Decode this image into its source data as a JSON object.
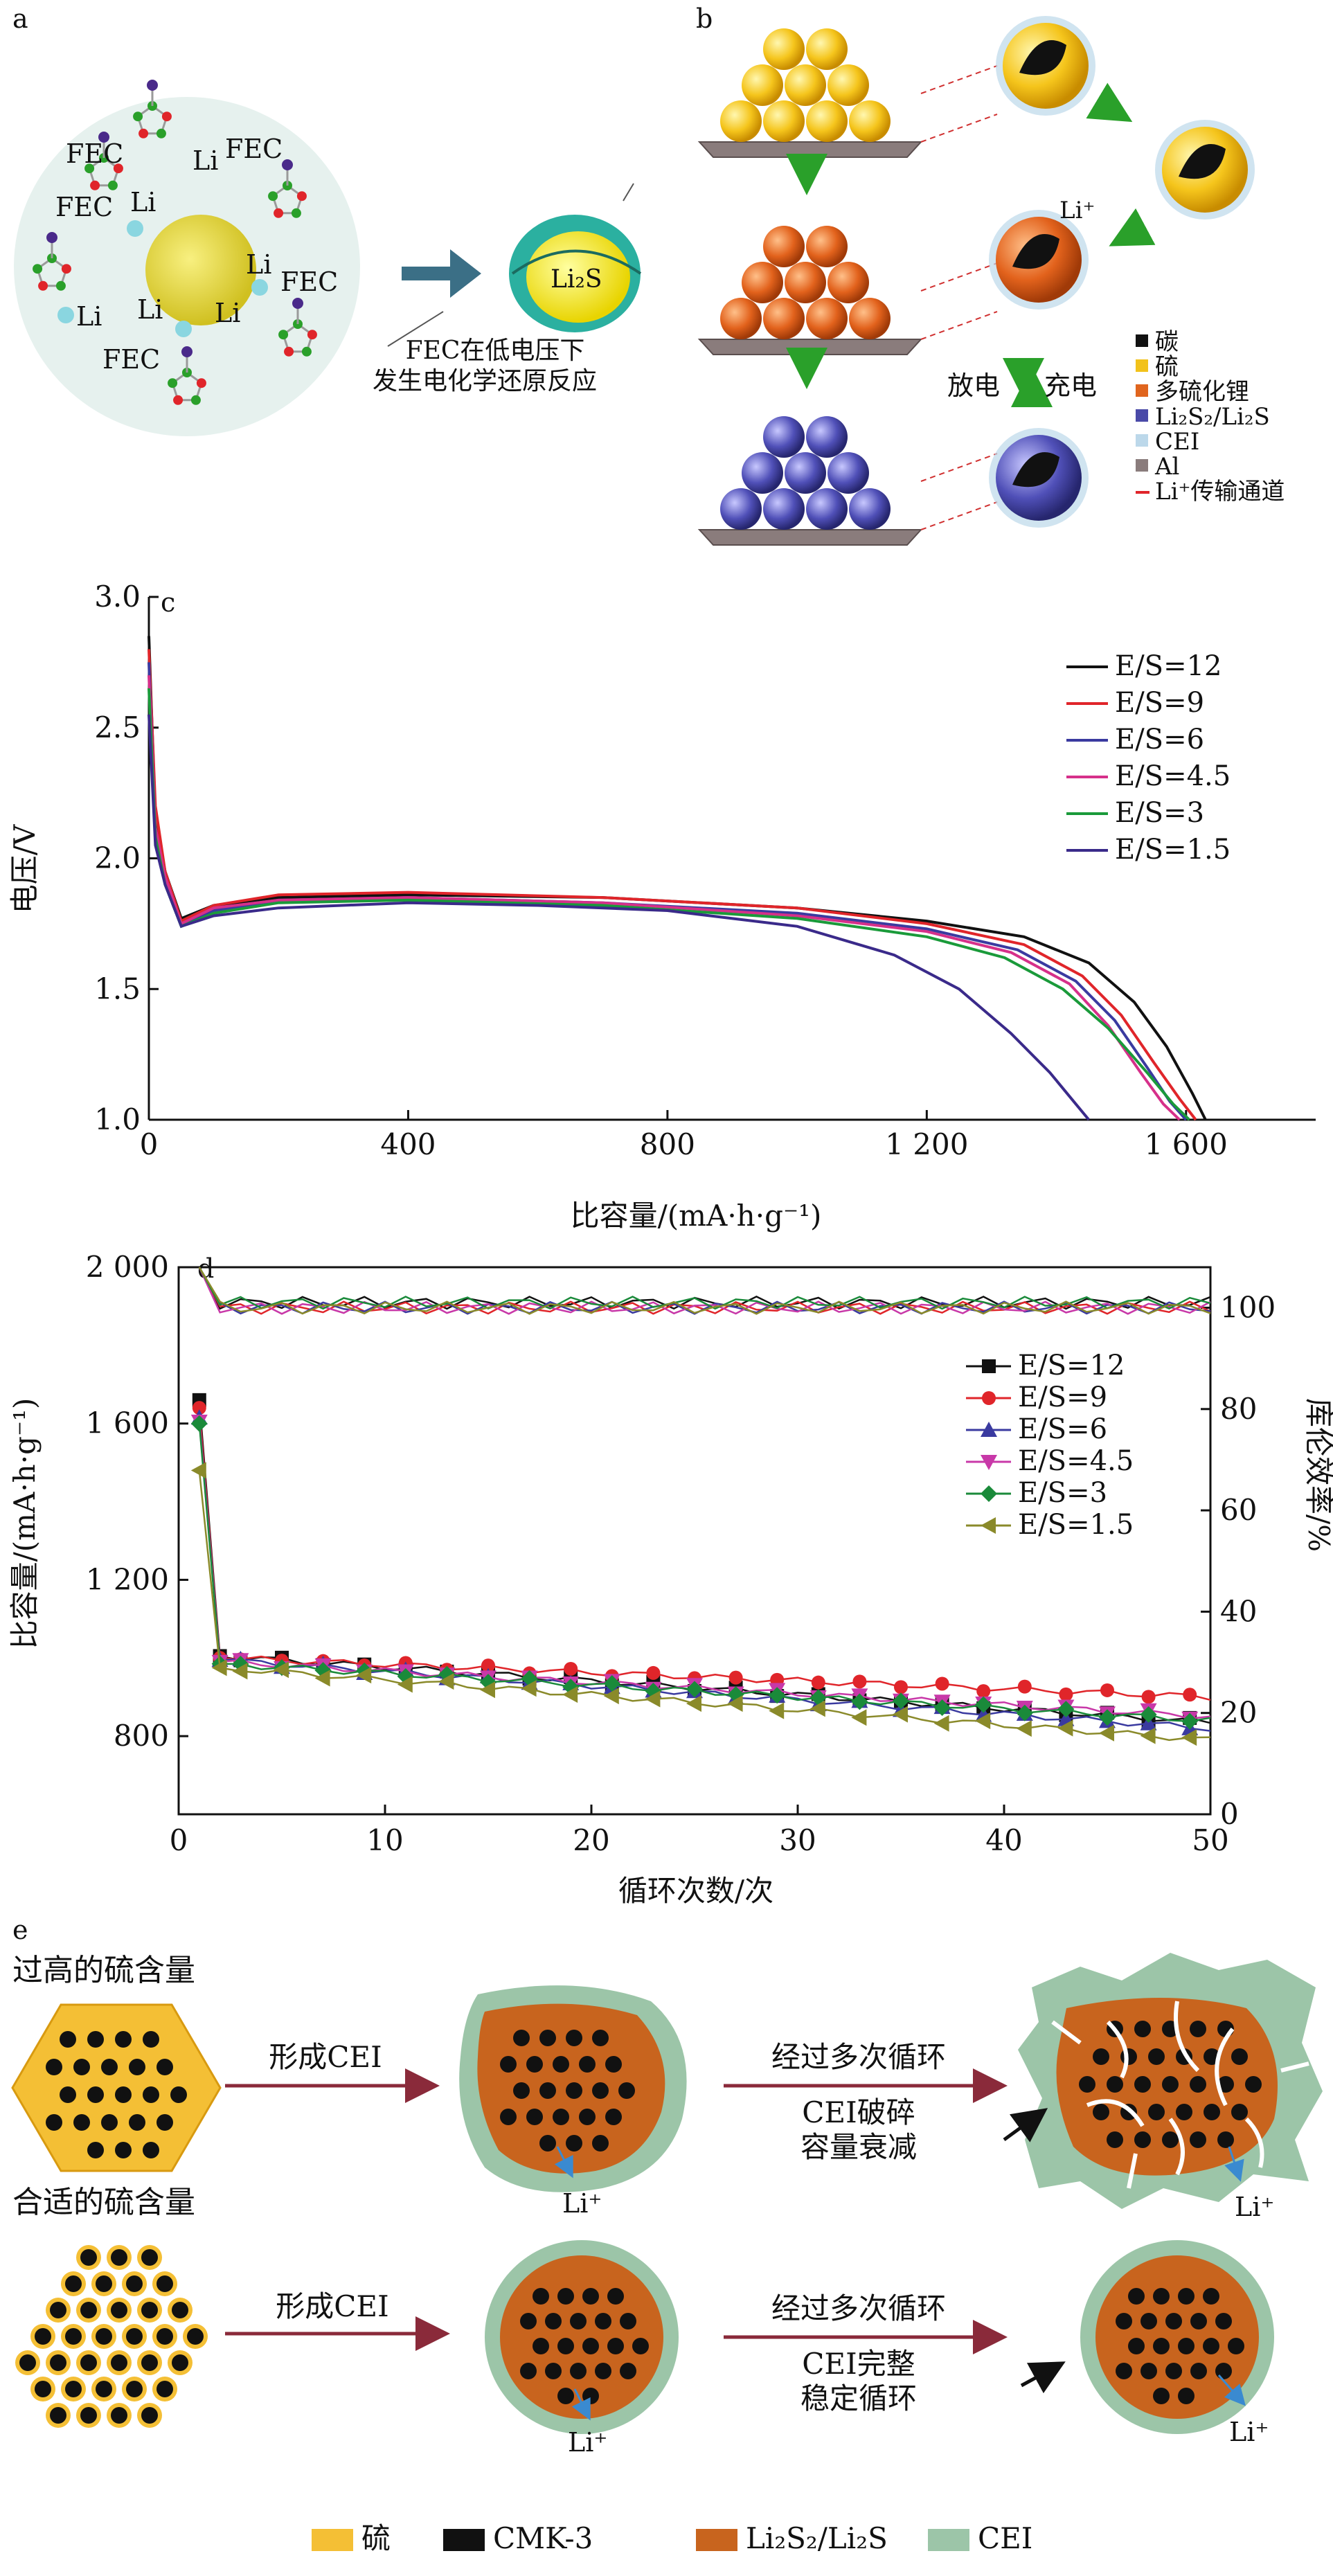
{
  "panel_a": {
    "label": "a",
    "fec": "FEC",
    "li": "Li",
    "product": "Li₂S",
    "caption_line1": "FEC在低电压下",
    "caption_line2": "发生电化学还原反应"
  },
  "panel_b": {
    "label": "b",
    "li_plus": "Li⁺",
    "discharge": "放电",
    "charge": "充电",
    "legend": [
      {
        "label": "碳",
        "color": "#111111"
      },
      {
        "label": "硫",
        "color": "#f2c21b"
      },
      {
        "label": "多硫化锂",
        "color": "#e0651e"
      },
      {
        "label": "Li₂S₂/Li₂S",
        "color": "#4a4aa8"
      },
      {
        "label": "CEI",
        "color": "#bcd8ea"
      },
      {
        "label": "Al",
        "color": "#8a7c7c"
      },
      {
        "label": "Li⁺传输通道",
        "color": "#e0252a"
      }
    ]
  },
  "chart_data": [
    {
      "type": "line",
      "label": "c",
      "xlabel": "比容量/(mA·h·g⁻¹)",
      "ylabel": "电压/V",
      "xlim": [
        0,
        1800
      ],
      "ylim": [
        1.0,
        3.0
      ],
      "xticks": [
        0,
        400,
        800,
        1200,
        1600
      ],
      "xtick_labels": [
        "0",
        "400",
        "800",
        "1 200",
        "1 600"
      ],
      "yticks": [
        1.0,
        1.5,
        2.0,
        2.5,
        3.0
      ],
      "ytick_labels": [
        "1.0",
        "1.5",
        "2.0",
        "2.5",
        "3.0"
      ],
      "legend_position": "top-right",
      "series": [
        {
          "name": "E/S=12",
          "color": "#111111",
          "x": [
            0,
            10,
            25,
            50,
            100,
            200,
            400,
            700,
            1000,
            1200,
            1350,
            1450,
            1520,
            1570,
            1610,
            1630
          ],
          "y": [
            2.85,
            2.15,
            1.95,
            1.77,
            1.82,
            1.85,
            1.86,
            1.85,
            1.81,
            1.76,
            1.7,
            1.6,
            1.45,
            1.28,
            1.1,
            1.0
          ]
        },
        {
          "name": "E/S=9",
          "color": "#e0252a",
          "x": [
            0,
            10,
            25,
            50,
            100,
            200,
            400,
            700,
            1000,
            1200,
            1350,
            1440,
            1500,
            1550,
            1590,
            1615
          ],
          "y": [
            2.8,
            2.2,
            1.95,
            1.76,
            1.82,
            1.86,
            1.87,
            1.85,
            1.81,
            1.75,
            1.67,
            1.55,
            1.4,
            1.22,
            1.08,
            1.0
          ]
        },
        {
          "name": "E/S=6",
          "color": "#3a3aa0",
          "x": [
            0,
            10,
            25,
            50,
            100,
            200,
            400,
            700,
            1000,
            1200,
            1340,
            1430,
            1490,
            1540,
            1575,
            1600
          ],
          "y": [
            2.75,
            2.1,
            1.92,
            1.75,
            1.8,
            1.84,
            1.85,
            1.83,
            1.79,
            1.73,
            1.65,
            1.53,
            1.38,
            1.2,
            1.07,
            1.0
          ]
        },
        {
          "name": "E/S=4.5",
          "color": "#d6308a",
          "x": [
            0,
            10,
            25,
            50,
            100,
            200,
            400,
            700,
            1000,
            1200,
            1330,
            1420,
            1480,
            1530,
            1565,
            1590
          ],
          "y": [
            2.7,
            2.12,
            1.93,
            1.75,
            1.81,
            1.84,
            1.85,
            1.83,
            1.78,
            1.72,
            1.64,
            1.52,
            1.36,
            1.18,
            1.06,
            1.0
          ]
        },
        {
          "name": "E/S=3",
          "color": "#1a9a3a",
          "x": [
            0,
            10,
            25,
            50,
            100,
            200,
            400,
            700,
            1000,
            1200,
            1320,
            1410,
            1480,
            1540,
            1580,
            1605
          ],
          "y": [
            2.65,
            2.08,
            1.9,
            1.74,
            1.79,
            1.83,
            1.84,
            1.82,
            1.77,
            1.7,
            1.62,
            1.5,
            1.35,
            1.18,
            1.06,
            1.0
          ]
        },
        {
          "name": "E/S=1.5",
          "color": "#3a2a8a",
          "x": [
            0,
            10,
            25,
            50,
            100,
            200,
            400,
            600,
            800,
            1000,
            1150,
            1250,
            1330,
            1390,
            1430,
            1450
          ],
          "y": [
            2.55,
            2.05,
            1.9,
            1.74,
            1.78,
            1.81,
            1.83,
            1.82,
            1.8,
            1.74,
            1.63,
            1.5,
            1.33,
            1.18,
            1.06,
            1.0
          ]
        }
      ]
    },
    {
      "type": "scatter",
      "label": "d",
      "xlabel": "循环次数/次",
      "ylabel": "比容量/(mA·h·g⁻¹)",
      "y2label": "库伦效率/%",
      "xlim": [
        0,
        50
      ],
      "ylim": [
        600,
        2000
      ],
      "y2lim": [
        0,
        108
      ],
      "xticks": [
        0,
        10,
        20,
        30,
        40,
        50
      ],
      "yticks": [
        800,
        1200,
        1600,
        2000
      ],
      "ytick_labels": [
        "800",
        "1 200",
        "1 600",
        "2 000"
      ],
      "y2ticks": [
        0,
        20,
        40,
        60,
        80,
        100
      ],
      "legend_position": "right",
      "series": [
        {
          "name": "E/S=12",
          "color": "#111111",
          "marker": "square",
          "first": 1660,
          "second": 1005,
          "last": 835,
          "ce_end": 101
        },
        {
          "name": "E/S=9",
          "color": "#e0252a",
          "marker": "circle",
          "first": 1640,
          "second": 1000,
          "last": 900,
          "ce_end": 100
        },
        {
          "name": "E/S=6",
          "color": "#3a3aa0",
          "marker": "triangle-up",
          "first": 1615,
          "second": 995,
          "last": 820,
          "ce_end": 100
        },
        {
          "name": "E/S=4.5",
          "color": "#c838a8",
          "marker": "triangle-down",
          "first": 1605,
          "second": 990,
          "last": 850,
          "ce_end": 100
        },
        {
          "name": "E/S=3",
          "color": "#1a8a3a",
          "marker": "diamond",
          "first": 1600,
          "second": 985,
          "last": 840,
          "ce_end": 101
        },
        {
          "name": "E/S=1.5",
          "color": "#8a8a2a",
          "marker": "triangle-left",
          "first": 1480,
          "second": 975,
          "last": 790,
          "ce_end": 100
        }
      ]
    }
  ],
  "panel_e": {
    "label": "e",
    "high_title": "过高的硫含量",
    "ok_title": "合适的硫含量",
    "form_cei": "形成CEI",
    "cycles": "经过多次循环",
    "high_result_1": "CEI破碎",
    "high_result_2": "容量衰减",
    "ok_result_1": "CEI完整",
    "ok_result_2": "稳定循环",
    "li_plus": "Li⁺",
    "legend": [
      {
        "label": "硫",
        "color": "#f4bf35"
      },
      {
        "label": "CMK-3",
        "color": "#111111"
      },
      {
        "label": "Li₂S₂/Li₂S",
        "color": "#c8641e"
      },
      {
        "label": "CEI",
        "color": "#9cc5a8"
      }
    ]
  }
}
